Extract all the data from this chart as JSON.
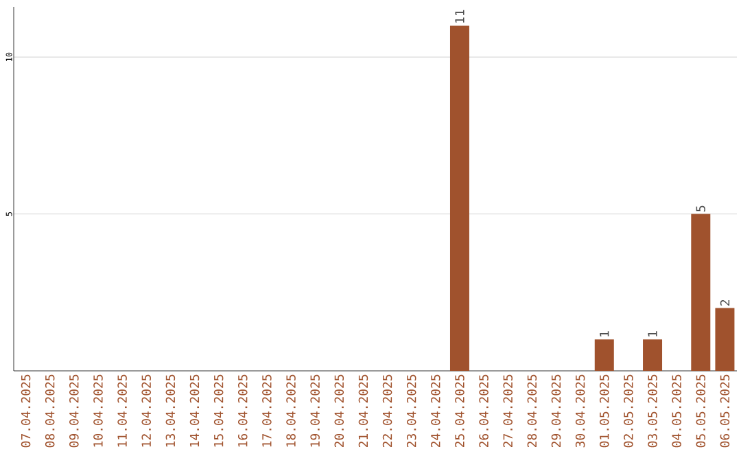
{
  "chart_data": {
    "type": "bar",
    "categories": [
      "07.04.2025",
      "08.04.2025",
      "09.04.2025",
      "10.04.2025",
      "11.04.2025",
      "12.04.2025",
      "13.04.2025",
      "14.04.2025",
      "15.04.2025",
      "16.04.2025",
      "17.04.2025",
      "18.04.2025",
      "19.04.2025",
      "20.04.2025",
      "21.04.2025",
      "22.04.2025",
      "23.04.2025",
      "24.04.2025",
      "25.04.2025",
      "26.04.2025",
      "27.04.2025",
      "28.04.2025",
      "29.04.2025",
      "30.04.2025",
      "01.05.2025",
      "02.05.2025",
      "03.05.2025",
      "04.05.2025",
      "05.05.2025",
      "06.05.2025"
    ],
    "values": [
      0,
      0,
      0,
      0,
      0,
      0,
      0,
      0,
      0,
      0,
      0,
      0,
      0,
      0,
      0,
      0,
      0,
      0,
      11,
      0,
      0,
      0,
      0,
      0,
      1,
      0,
      1,
      0,
      5,
      2
    ],
    "value_labels": [
      null,
      null,
      null,
      null,
      null,
      null,
      null,
      null,
      null,
      null,
      null,
      null,
      null,
      null,
      null,
      null,
      null,
      null,
      "11",
      null,
      null,
      null,
      null,
      null,
      "1",
      null,
      "1",
      null,
      "5",
      "2"
    ],
    "color": "#a0522d",
    "ylim": [
      0,
      11.6
    ],
    "yticks": [
      5,
      10
    ],
    "grid": "y"
  }
}
